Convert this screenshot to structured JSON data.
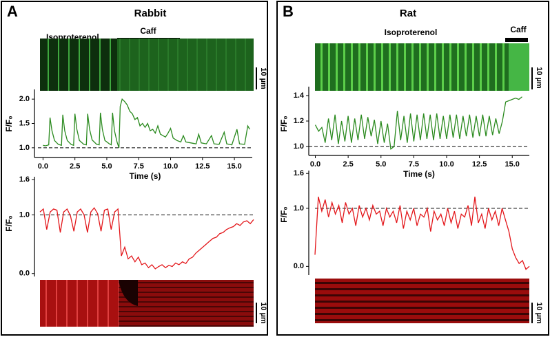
{
  "panels": [
    {
      "label": "A",
      "title": "Rabbit",
      "drug": "Isoproterenol",
      "caff": "Caff",
      "scale_bars": [
        "10 µm",
        "10 µm"
      ]
    },
    {
      "label": "B",
      "title": "Rat",
      "drug": "Isoproterenol",
      "caff": "Caff",
      "scale_bars": [
        "10 µm",
        "10 µm"
      ]
    }
  ],
  "chart_data": [
    {
      "type": "line",
      "xlabel": "Time (s)",
      "ylabel": "F/F₀",
      "color": "#2a8a1e",
      "reference_line": 1,
      "xlim": [
        -0.4,
        16.4
      ],
      "ylim": [
        0.8,
        2.2
      ],
      "xticks": [
        {
          "value": 0,
          "label": "0.0"
        },
        2.5,
        {
          "value": 5,
          "label": "5.0"
        },
        7.5,
        {
          "value": 10,
          "label": "10.0"
        },
        12.5,
        {
          "value": 15,
          "label": "15.0"
        }
      ],
      "yticks": [
        {
          "value": 1,
          "label": "1.0"
        },
        1.5,
        {
          "value": 2,
          "label": "2.0"
        }
      ],
      "x": [
        0.0,
        0.2,
        0.45,
        0.55,
        0.7,
        0.9,
        1.2,
        1.45,
        1.55,
        1.7,
        1.9,
        2.2,
        2.4,
        2.5,
        2.65,
        2.85,
        3.2,
        3.4,
        3.5,
        3.65,
        3.85,
        4.2,
        4.4,
        4.5,
        4.65,
        4.85,
        5.2,
        5.35,
        5.45,
        5.6,
        5.8,
        5.95,
        6.05,
        6.2,
        6.4,
        6.6,
        6.8,
        7.0,
        7.2,
        7.4,
        7.6,
        7.8,
        8.0,
        8.2,
        8.4,
        8.6,
        8.8,
        9.0,
        9.2,
        9.4,
        9.6,
        9.8,
        10.0,
        10.2,
        10.5,
        10.8,
        11.0,
        11.2,
        11.6,
        12.0,
        12.2,
        12.4,
        12.8,
        13.2,
        13.4,
        13.8,
        14.2,
        14.4,
        14.8,
        15.2,
        15.4,
        15.8,
        16.05,
        16.2
      ],
      "values": [
        1.05,
        1.04,
        1.06,
        1.62,
        1.35,
        1.15,
        1.07,
        1.05,
        1.68,
        1.35,
        1.15,
        1.07,
        1.05,
        1.7,
        1.38,
        1.15,
        1.07,
        1.06,
        1.7,
        1.38,
        1.16,
        1.07,
        1.06,
        1.72,
        1.38,
        1.15,
        1.08,
        1.06,
        1.72,
        1.35,
        1.12,
        1.0,
        1.85,
        2.0,
        1.95,
        1.88,
        1.75,
        1.7,
        1.58,
        1.62,
        1.45,
        1.5,
        1.42,
        1.5,
        1.35,
        1.38,
        1.3,
        1.45,
        1.28,
        1.25,
        1.22,
        1.3,
        1.4,
        1.2,
        1.15,
        1.12,
        1.25,
        1.12,
        1.1,
        1.08,
        1.28,
        1.1,
        1.08,
        1.25,
        1.08,
        1.07,
        1.32,
        1.08,
        1.06,
        1.38,
        1.08,
        1.07,
        1.45,
        1.38
      ]
    },
    {
      "type": "line",
      "ylabel": "F/F₀",
      "color": "#e3161a",
      "reference_line": 1,
      "ylim": [
        -0.05,
        1.65
      ],
      "yticks": [
        {
          "value": 0,
          "label": "0.0"
        },
        {
          "value": 1,
          "label": "1.0"
        },
        1.6
      ],
      "values": [
        1.05,
        1.1,
        0.75,
        1.05,
        1.1,
        1.08,
        0.7,
        1.05,
        1.1,
        0.98,
        0.72,
        1.05,
        1.1,
        1.0,
        0.7,
        1.05,
        1.12,
        1.02,
        0.72,
        1.08,
        1.1,
        0.75,
        1.05,
        1.1,
        0.3,
        0.45,
        0.25,
        0.3,
        0.2,
        0.28,
        0.15,
        0.18,
        0.1,
        0.15,
        0.08,
        0.12,
        0.15,
        0.1,
        0.14,
        0.12,
        0.18,
        0.15,
        0.2,
        0.17,
        0.25,
        0.28,
        0.35,
        0.4,
        0.45,
        0.5,
        0.55,
        0.6,
        0.62,
        0.68,
        0.7,
        0.75,
        0.78,
        0.8,
        0.85,
        0.82,
        0.88,
        0.9,
        0.85,
        0.92
      ]
    },
    {
      "type": "line",
      "xlabel": "Time (s)",
      "ylabel": "F/F₀",
      "color": "#2a8a1e",
      "reference_line": 1,
      "xlim": [
        -0.5,
        16.3
      ],
      "ylim": [
        0.93,
        1.47
      ],
      "xticks": [
        {
          "value": 0,
          "label": "0.0"
        },
        2.5,
        {
          "value": 5,
          "label": "5.0"
        },
        7.5,
        {
          "value": 10,
          "label": "10.0"
        },
        12.5,
        {
          "value": 15,
          "label": "15.0"
        }
      ],
      "yticks": [
        {
          "value": 1,
          "label": "1.0"
        },
        1.2,
        1.4
      ],
      "x": [
        0,
        0.25,
        0.5,
        0.75,
        1,
        1.25,
        1.5,
        1.75,
        2,
        2.25,
        2.5,
        2.75,
        3,
        3.25,
        3.5,
        3.75,
        4,
        4.25,
        4.5,
        4.75,
        5,
        5.25,
        5.5,
        5.75,
        6,
        6.25,
        6.5,
        6.75,
        7,
        7.25,
        7.5,
        7.75,
        8,
        8.25,
        8.5,
        8.75,
        9,
        9.25,
        9.5,
        9.75,
        10,
        10.25,
        10.5,
        10.75,
        11,
        11.25,
        11.5,
        11.75,
        12,
        12.25,
        12.5,
        12.75,
        13,
        13.25,
        13.5,
        13.75,
        14,
        14.25,
        14.5,
        14.75,
        15,
        15.25,
        15.5,
        15.75
      ],
      "values": [
        1.17,
        1.12,
        1.15,
        1.03,
        1.22,
        1.05,
        1.25,
        1.02,
        1.2,
        1.04,
        1.24,
        1.03,
        1.22,
        1.05,
        1.25,
        1.06,
        1.23,
        1.08,
        1.21,
        1.02,
        1.2,
        1.03,
        1.18,
        0.98,
        1.0,
        1.28,
        1.05,
        1.24,
        1.03,
        1.26,
        1.04,
        1.25,
        1.05,
        1.26,
        1.06,
        1.25,
        1.05,
        1.26,
        1.06,
        1.24,
        1.06,
        1.25,
        1.07,
        1.25,
        1.06,
        1.24,
        1.08,
        1.25,
        1.07,
        1.24,
        1.08,
        1.25,
        1.08,
        1.24,
        1.09,
        1.22,
        1.1,
        1.2,
        1.35,
        1.36,
        1.37,
        1.38,
        1.37,
        1.39
      ]
    },
    {
      "type": "line",
      "ylabel": "F/F₀",
      "color": "#e3161a",
      "reference_line": 1,
      "ylim": [
        -0.15,
        1.65
      ],
      "yticks": [
        {
          "value": 0,
          "label": "0.0"
        },
        {
          "value": 1,
          "label": "1.0"
        },
        1.6
      ],
      "values": [
        0.2,
        1.2,
        0.95,
        1.15,
        0.85,
        1.1,
        0.9,
        1.05,
        0.75,
        1.1,
        0.9,
        1.0,
        0.7,
        1.05,
        0.85,
        1.0,
        0.8,
        1.05,
        0.9,
        0.95,
        0.7,
        1.0,
        0.85,
        0.95,
        0.75,
        1.05,
        0.65,
        0.95,
        0.8,
        1.0,
        0.7,
        0.9,
        0.85,
        1.0,
        0.6,
        0.95,
        0.8,
        0.9,
        0.7,
        1.0,
        0.75,
        0.95,
        0.65,
        0.9,
        0.85,
        1.05,
        0.7,
        1.2,
        0.75,
        0.9,
        0.65,
        1.0,
        0.8,
        0.95,
        0.7,
        1.0,
        0.8,
        0.6,
        0.3,
        0.15,
        0.05,
        0.1,
        -0.05,
        0.0
      ]
    }
  ]
}
